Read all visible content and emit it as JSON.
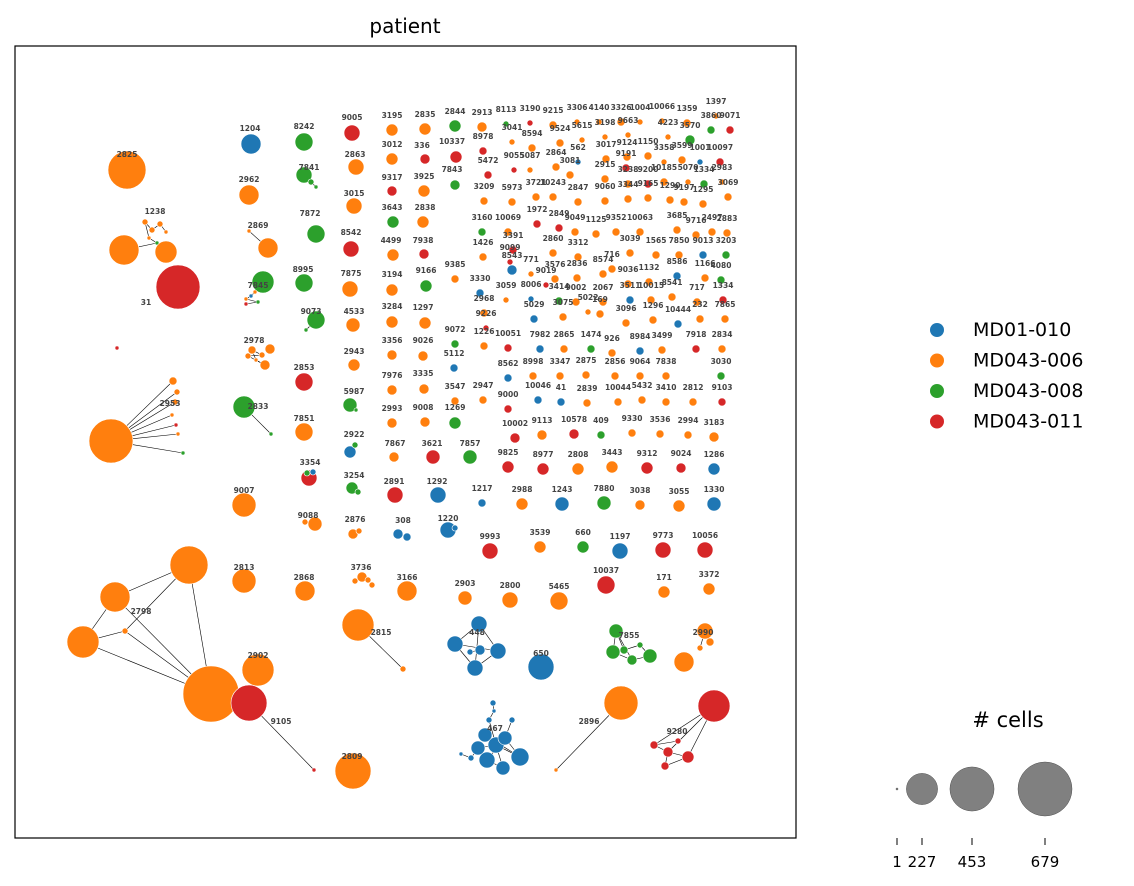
{
  "chart_data": {
    "type": "scatter",
    "title": "patient",
    "subtype": "clonotype network",
    "legend": {
      "placement": "right",
      "items": [
        {
          "name": "MD01-010",
          "color": "#1f77b4"
        },
        {
          "name": "MD043-006",
          "color": "#ff7f0e"
        },
        {
          "name": "MD043-008",
          "color": "#2ca02c"
        },
        {
          "name": "MD043-011",
          "color": "#d62728"
        }
      ]
    },
    "size_legend": {
      "title": "# cells",
      "values": [
        1,
        227,
        453,
        679
      ],
      "tick_labels": [
        "1",
        "227",
        "453",
        "679"
      ]
    },
    "edge_color": "#000000",
    "clonotype_labels": [
      "1204",
      "2825",
      "8242",
      "9005",
      "3195",
      "2835",
      "2844",
      "2913",
      "8113",
      "3190",
      "9215",
      "3306",
      "4140",
      "3326",
      "1004",
      "10066",
      "1359",
      "1397",
      "3860",
      "9071",
      "1238",
      "2962",
      "7841",
      "2863",
      "3012",
      "336",
      "10337",
      "8978",
      "3041",
      "8594",
      "9524",
      "5615",
      "3198",
      "9663",
      "4223",
      "3570",
      "3017",
      "9124",
      "1150",
      "3358",
      "3599",
      "1001",
      "10097",
      "2869",
      "7872",
      "3015",
      "9317",
      "3925",
      "7843",
      "5472",
      "9055",
      "5087",
      "2864",
      "562",
      "9191",
      "3081",
      "2915",
      "3238",
      "9200",
      "10185",
      "5070",
      "1334",
      "2983",
      "118",
      "7845",
      "8995",
      "8542",
      "3643",
      "2838",
      "3209",
      "5973",
      "3721",
      "10243",
      "2847",
      "9060",
      "3344",
      "9165",
      "1290",
      "9197",
      "1295",
      "3069",
      "9038",
      "7877",
      "31",
      "9073",
      "4499",
      "7938",
      "3160",
      "10069",
      "1972",
      "2849",
      "9049",
      "1125",
      "9352",
      "10063",
      "3685",
      "9716",
      "2497",
      "2883",
      "2892",
      "2978",
      "7875",
      "3194",
      "9166",
      "1426",
      "3391",
      "8543",
      "2860",
      "771",
      "3576",
      "2836",
      "3312",
      "3039",
      "1565",
      "7850",
      "9013",
      "3203",
      "2853",
      "4533",
      "3284",
      "1297",
      "9385",
      "3330",
      "9099",
      "8574",
      "716",
      "9019",
      "9036",
      "1132",
      "8586",
      "1166",
      "4080",
      "2944",
      "1334",
      "2953",
      "7851",
      "2943",
      "3356",
      "9026",
      "2968",
      "3059",
      "8006",
      "3414",
      "9002",
      "2067",
      "3511",
      "10015",
      "8541",
      "717",
      "2833",
      "2922",
      "7976",
      "3335",
      "9072",
      "9226",
      "5029",
      "3075",
      "5022",
      "169",
      "3096",
      "1296",
      "10444",
      "232",
      "7865",
      "3354",
      "5987",
      "2993",
      "9008",
      "1226",
      "10051",
      "7982",
      "2865",
      "1474",
      "926",
      "8984",
      "3499",
      "7918",
      "2834",
      "3254",
      "9007",
      "7867",
      "3621",
      "1269",
      "5112",
      "8562",
      "8998",
      "3347",
      "2875",
      "2856",
      "9064",
      "7838",
      "3030",
      "9088",
      "2891",
      "3547",
      "2947",
      "10046",
      "41",
      "2839",
      "10044",
      "5432",
      "3410",
      "2812",
      "9103",
      "2876",
      "1292",
      "7857",
      "9000",
      "10002",
      "9113",
      "10578",
      "409",
      "9330",
      "3536",
      "2994",
      "3183",
      "308",
      "1220",
      "9825",
      "8977",
      "2808",
      "3443",
      "9312",
      "9024",
      "1286",
      "2813",
      "3736",
      "1217",
      "2988",
      "1243",
      "7880",
      "3038",
      "3055",
      "1330",
      "2868",
      "3166",
      "9993",
      "3539",
      "660",
      "1197",
      "9773",
      "10056",
      "2798",
      "2903",
      "2800",
      "5465",
      "10037",
      "171",
      "3372",
      "2815",
      "448",
      "650",
      "7855",
      "2990",
      "2902",
      "9105",
      "2809",
      "467",
      "2896",
      "9280"
    ]
  }
}
